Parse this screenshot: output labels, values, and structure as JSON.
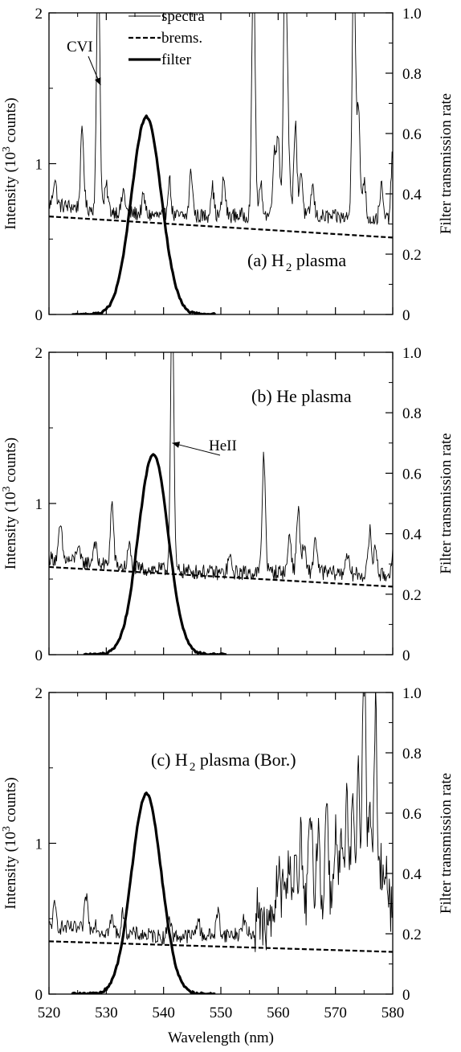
{
  "chart_data": [
    {
      "type": "line",
      "panel_label": "(a) H",
      "panel_sub": "2",
      "panel_label_tail": " plasma",
      "xlim": [
        520,
        580
      ],
      "ylim_left": [
        0,
        2
      ],
      "ylim_right": [
        0,
        1.0
      ],
      "yticks_left": [
        0,
        1,
        2
      ],
      "yticks_left_labels": [
        "0",
        "1",
        "2"
      ],
      "yticks_right": [
        0,
        0.2,
        0.4,
        0.6,
        0.8,
        1.0
      ],
      "yticks_right_labels": [
        "0",
        "0.2",
        "0.4",
        "0.6",
        "0.8",
        "1.0"
      ],
      "ylabel_left": "Intensity (10",
      "ylabel_left_sup": "3",
      "ylabel_left_tail": " counts)",
      "ylabel_right": "Filter transmission rate",
      "legend": [
        "spectra",
        "brems.",
        "filter"
      ],
      "annotations": [
        {
          "text": "CVI",
          "x": 529.0,
          "y": 1.52
        }
      ],
      "series": [
        {
          "name": "spectra",
          "baseline": [
            [
              520,
              0.73
            ],
            [
              540,
              0.65
            ],
            [
              560,
              0.66
            ],
            [
              580,
              0.63
            ]
          ],
          "peaks": [
            [
              521,
              0.9
            ],
            [
              525.8,
              1.22
            ],
            [
              528.6,
              2.4
            ],
            [
              530,
              0.85
            ],
            [
              533,
              0.82
            ],
            [
              536.5,
              0.78
            ],
            [
              541,
              0.9
            ],
            [
              544.8,
              0.95
            ],
            [
              548.5,
              0.85
            ],
            [
              550.5,
              0.9
            ],
            [
              555.7,
              2.4
            ],
            [
              557,
              0.85
            ],
            [
              559.3,
              1.05
            ],
            [
              560,
              1.2
            ],
            [
              561.2,
              2.4
            ],
            [
              561.7,
              1.18
            ],
            [
              563,
              1.26
            ],
            [
              564,
              0.95
            ],
            [
              566,
              0.85
            ],
            [
              573.2,
              2.4
            ],
            [
              574,
              1.35
            ],
            [
              575,
              0.9
            ],
            [
              578,
              0.85
            ],
            [
              580,
              1.07
            ]
          ]
        },
        {
          "name": "brems.",
          "x": [
            520,
            580
          ],
          "y": [
            0.65,
            0.51
          ]
        },
        {
          "name": "filter",
          "center": 537.0,
          "peak": 0.655,
          "sigma": 2.6,
          "x_range": [
            524,
            549
          ]
        }
      ]
    },
    {
      "type": "line",
      "panel_label": "(b) He plasma",
      "xlim": [
        520,
        580
      ],
      "ylim_left": [
        0,
        2
      ],
      "ylim_right": [
        0,
        1.0
      ],
      "yticks_left": [
        0,
        1,
        2
      ],
      "yticks_left_labels": [
        "0",
        "1",
        "2"
      ],
      "yticks_right": [
        0,
        0.2,
        0.4,
        0.6,
        0.8,
        1.0
      ],
      "yticks_right_labels": [
        "0",
        "0.2",
        "0.4",
        "0.6",
        "0.8",
        "1.0"
      ],
      "ylabel_left": "Intensity (10",
      "ylabel_left_sup": "3",
      "ylabel_left_tail": " counts)",
      "ylabel_right": "Filter transmission rate",
      "annotations": [
        {
          "text": "HeII",
          "x": 541.5,
          "y": 1.4
        }
      ],
      "series": [
        {
          "name": "spectra",
          "baseline": [
            [
              520,
              0.64
            ],
            [
              535,
              0.57
            ],
            [
              550,
              0.54
            ],
            [
              565,
              0.55
            ],
            [
              580,
              0.52
            ]
          ],
          "peaks": [
            [
              522,
              0.85
            ],
            [
              525,
              0.72
            ],
            [
              528,
              0.75
            ],
            [
              531,
              1.0
            ],
            [
              534,
              0.72
            ],
            [
              541.5,
              2.4
            ],
            [
              551.5,
              0.65
            ],
            [
              557.5,
              1.32
            ],
            [
              562,
              0.8
            ],
            [
              563.5,
              0.97
            ],
            [
              564.5,
              0.72
            ],
            [
              566.5,
              0.78
            ],
            [
              572,
              0.68
            ],
            [
              576,
              0.82
            ],
            [
              577,
              0.72
            ],
            [
              580,
              0.68
            ]
          ]
        },
        {
          "name": "brems.",
          "x": [
            520,
            580
          ],
          "y": [
            0.58,
            0.45
          ]
        },
        {
          "name": "filter",
          "center": 538.2,
          "peak": 0.665,
          "sigma": 2.6,
          "x_range": [
            526,
            551
          ]
        }
      ]
    },
    {
      "type": "line",
      "panel_label": "(c) H",
      "panel_sub": "2",
      "panel_label_tail": " plasma (Bor.)",
      "xlim": [
        520,
        580
      ],
      "ylim_left": [
        0,
        2
      ],
      "ylim_right": [
        0,
        1.0
      ],
      "yticks_left": [
        0,
        1,
        2
      ],
      "yticks_left_labels": [
        "0",
        "1",
        "2"
      ],
      "yticks_right": [
        0,
        0.2,
        0.4,
        0.6,
        0.8,
        1.0
      ],
      "yticks_right_labels": [
        "0",
        "0.2",
        "0.4",
        "0.6",
        "0.8",
        "1.0"
      ],
      "xticks": [
        520,
        530,
        540,
        550,
        560,
        570,
        580
      ],
      "xticks_labels": [
        "520",
        "530",
        "540",
        "550",
        "560",
        "570",
        "580"
      ],
      "xlabel": "Wavelength (nm)",
      "ylabel_left": "Intensity (10",
      "ylabel_left_sup": "3",
      "ylabel_left_tail": " counts)",
      "ylabel_right": "Filter transmission rate",
      "series": [
        {
          "name": "spectra",
          "baseline": [
            [
              520,
              0.45
            ],
            [
              540,
              0.38
            ],
            [
              556,
              0.4
            ],
            [
              560,
              0.5
            ],
            [
              570,
              0.6
            ],
            [
              580,
              0.5
            ]
          ],
          "peaks": [
            [
              521,
              0.58
            ],
            [
              526.5,
              0.66
            ],
            [
              528,
              0.48
            ],
            [
              531,
              0.5
            ],
            [
              533,
              0.55
            ],
            [
              541,
              0.52
            ],
            [
              546,
              0.5
            ],
            [
              549.5,
              0.55
            ],
            [
              554,
              0.5
            ],
            [
              556.5,
              0.6
            ],
            [
              560,
              0.85
            ],
            [
              561,
              0.78
            ],
            [
              562,
              0.95
            ],
            [
              563,
              0.85
            ],
            [
              564,
              1.05
            ],
            [
              565.5,
              1.1
            ],
            [
              566,
              0.8
            ],
            [
              567,
              1.12
            ],
            [
              568.5,
              1.3
            ],
            [
              570,
              1.1
            ],
            [
              571,
              1.0
            ],
            [
              572,
              1.25
            ],
            [
              573,
              1.2
            ],
            [
              574,
              1.55
            ],
            [
              575,
              2.4
            ],
            [
              576,
              1.35
            ],
            [
              577,
              1.9
            ],
            [
              578,
              0.85
            ],
            [
              579,
              0.8
            ],
            [
              580,
              0.6
            ]
          ]
        },
        {
          "name": "brems.",
          "x": [
            520,
            580
          ],
          "y": [
            0.35,
            0.28
          ]
        },
        {
          "name": "filter",
          "center": 537.0,
          "peak": 0.665,
          "sigma": 2.6,
          "x_range": [
            524,
            549
          ]
        }
      ]
    }
  ]
}
